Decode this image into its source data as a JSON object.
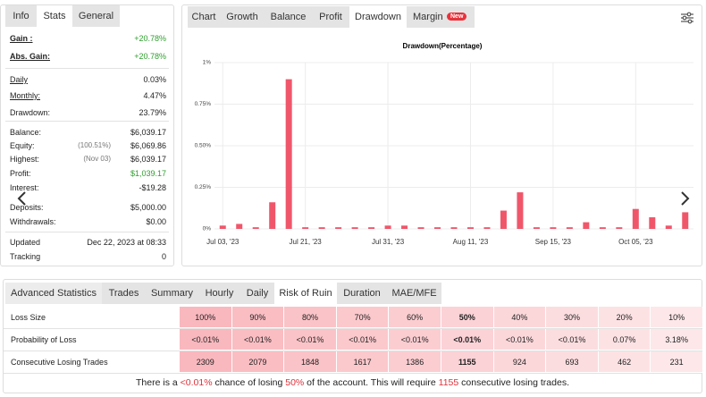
{
  "left_panel": {
    "tabs": [
      "Info",
      "Stats",
      "General"
    ],
    "active_tab": "Stats",
    "rows": [
      {
        "label": "Gain :",
        "value": "+20.78%",
        "color": "#2e9e2e"
      },
      {
        "label": "Abs. Gain:",
        "value": "+20.78%",
        "color": "#2e9e2e"
      },
      {
        "label": "Daily",
        "value": "0.03%"
      },
      {
        "label": "Monthly:",
        "value": "4.47%"
      },
      {
        "label": "Drawdown:",
        "value": "23.79%"
      },
      {
        "label": "Balance:",
        "value": "$6,039.17"
      },
      {
        "label": "Equity:",
        "note": "(100.51%)",
        "value": "$6,069.86"
      },
      {
        "label": "Highest:",
        "note": "(Nov 03)",
        "value": "$6,039.17"
      },
      {
        "label": "Profit:",
        "value": "$1,039.17",
        "color": "#2e9e2e"
      },
      {
        "label": "Interest:",
        "value": "-$19.28"
      },
      {
        "label": "Deposits:",
        "value": "$5,000.00"
      },
      {
        "label": "Withdrawals:",
        "value": "$0.00"
      },
      {
        "label": "Updated",
        "value": "Dec 22, 2023 at 08:33"
      },
      {
        "label": "Tracking",
        "value": "0"
      }
    ]
  },
  "chart_panel": {
    "tabs": [
      "Chart",
      "Growth",
      "Balance",
      "Profit",
      "Drawdown",
      "Margin"
    ],
    "badge": "New",
    "active_tab": "Drawdown"
  },
  "chart_data": {
    "type": "bar",
    "title": "Drawdown(Percentage)",
    "color": "#f0566a",
    "grid": true,
    "categories": [
      "Jul 03, '23",
      null,
      null,
      null,
      null,
      "Jul 21, '23",
      null,
      null,
      null,
      null,
      "Jul 31, '23",
      null,
      null,
      null,
      null,
      "Aug 11, '23",
      null,
      null,
      null,
      null,
      "Sep 15, '23",
      null,
      null,
      null,
      null,
      "Oct 05, '23",
      null,
      null,
      null
    ],
    "values": [
      0.02,
      0.03,
      0.01,
      0.16,
      0.9,
      0.01,
      0.01,
      0.01,
      0.01,
      0.01,
      0.02,
      0.02,
      0.01,
      0.01,
      0.01,
      0.01,
      0.01,
      0.11,
      0.22,
      0.01,
      0.01,
      0.01,
      0.04,
      0.01,
      0.01,
      0.12,
      0.07,
      0.02,
      0.1
    ],
    "ylim": [
      0,
      1
    ],
    "yticks": [
      {
        "value": 0,
        "label": "0%"
      },
      {
        "value": 0.25,
        "label": "0.25%"
      },
      {
        "value": 0.5,
        "label": "0.50%"
      },
      {
        "value": 0.75,
        "label": "0.75%"
      },
      {
        "value": 1,
        "label": "1%"
      }
    ]
  },
  "stats_panel": {
    "tabs": [
      "Advanced Statistics",
      "Trades",
      "Summary",
      "Hourly",
      "Daily",
      "Risk of Ruin",
      "Duration",
      "MAE/MFE"
    ],
    "active_tab": "Risk of Ruin",
    "rows": [
      {
        "label": "Loss Size",
        "cells": [
          "100%",
          "90%",
          "80%",
          "70%",
          "60%",
          "50%",
          "40%",
          "30%",
          "20%",
          "10%"
        ]
      },
      {
        "label": "Probability of Loss",
        "cells": [
          "<0.01%",
          "<0.01%",
          "<0.01%",
          "<0.01%",
          "<0.01%",
          "<0.01%",
          "<0.01%",
          "<0.01%",
          "0.07%",
          "3.18%"
        ]
      },
      {
        "label": "Consecutive Losing Trades",
        "cells": [
          2309,
          2079,
          1848,
          1617,
          1386,
          1155,
          924,
          693,
          462,
          231
        ]
      }
    ],
    "summary": [
      "There is a ",
      "<0.01%",
      " chance of losing ",
      "50%",
      " of the account. This will require ",
      "1155",
      " consecutive losing trades."
    ]
  }
}
